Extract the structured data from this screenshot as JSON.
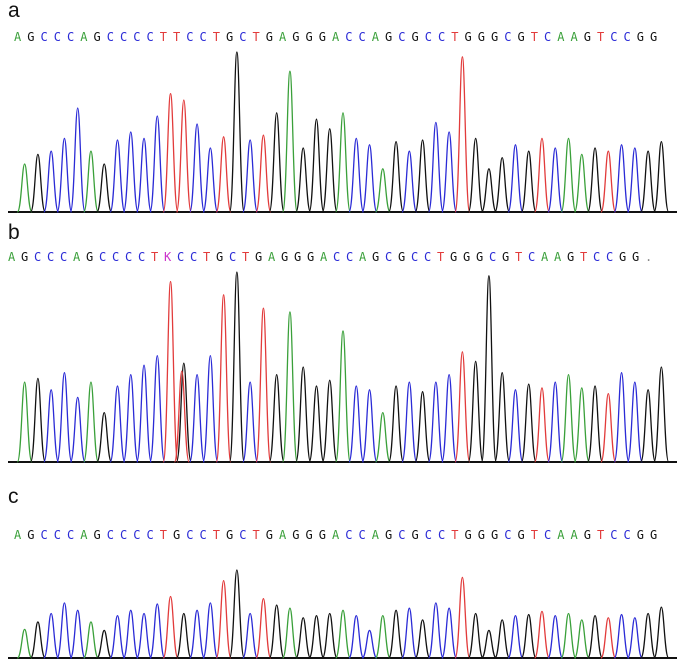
{
  "colors": {
    "A": "#3aa03a",
    "C": "#2b2bd6",
    "G": "#111111",
    "T": "#e23b3b",
    "K": "#cc33cc",
    "axis": "#111111"
  },
  "panels": [
    {
      "id": "a",
      "label": "a",
      "sequence": [
        "A",
        "G",
        "C",
        "C",
        "C",
        "A",
        "G",
        "C",
        "C",
        "C",
        "C",
        "T",
        "T",
        "C",
        "C",
        "T",
        "G",
        "C",
        "T",
        "G",
        "A",
        "G",
        "G",
        "G",
        "A",
        "C",
        "C",
        "A",
        "G",
        "C",
        "G",
        "C",
        "C",
        "T",
        "G",
        "G",
        "G",
        "C",
        "G",
        "T",
        "C",
        "A",
        "A",
        "G",
        "T",
        "C",
        "C",
        "G",
        "G"
      ],
      "peak_heights": [
        0.3,
        0.36,
        0.38,
        0.46,
        0.65,
        0.38,
        0.3,
        0.45,
        0.5,
        0.46,
        0.6,
        0.74,
        0.7,
        0.55,
        0.4,
        0.47,
        1.0,
        0.45,
        0.48,
        0.62,
        0.88,
        0.4,
        0.58,
        0.52,
        0.62,
        0.46,
        0.42,
        0.27,
        0.44,
        0.38,
        0.45,
        0.56,
        0.5,
        0.97,
        0.46,
        0.27,
        0.34,
        0.42,
        0.38,
        0.46,
        0.4,
        0.46,
        0.36,
        0.4,
        0.38,
        0.42,
        0.4,
        0.38,
        0.44
      ]
    },
    {
      "id": "b",
      "label": "b",
      "sequence": [
        "A",
        "G",
        "C",
        "C",
        "C",
        "A",
        "G",
        "C",
        "C",
        "C",
        "C",
        "T",
        "K",
        "C",
        "C",
        "T",
        "G",
        "C",
        "T",
        "G",
        "A",
        "G",
        "G",
        "G",
        "A",
        "C",
        "C",
        "A",
        "G",
        "C",
        "G",
        "C",
        "C",
        "T",
        "G",
        "G",
        "G",
        "C",
        "G",
        "T",
        "C",
        "A",
        "A",
        "G",
        "T",
        "C",
        "C",
        "G",
        "G",
        "."
      ],
      "peak_heights": [
        0.42,
        0.44,
        0.38,
        0.47,
        0.34,
        0.42,
        0.26,
        0.4,
        0.46,
        0.51,
        0.56,
        0.95,
        0.52,
        0.46,
        0.56,
        0.88,
        1.0,
        0.42,
        0.81,
        0.46,
        0.79,
        0.5,
        0.4,
        0.43,
        0.69,
        0.4,
        0.38,
        0.26,
        0.4,
        0.42,
        0.37,
        0.42,
        0.46,
        0.58,
        0.53,
        0.98,
        0.47,
        0.38,
        0.41,
        0.39,
        0.42,
        0.46,
        0.39,
        0.4,
        0.36,
        0.47,
        0.42,
        0.38,
        0.5
      ]
    },
    {
      "id": "c",
      "label": "c",
      "sequence": [
        "A",
        "G",
        "C",
        "C",
        "C",
        "A",
        "G",
        "C",
        "C",
        "C",
        "C",
        "T",
        "G",
        "C",
        "C",
        "T",
        "G",
        "C",
        "T",
        "G",
        "A",
        "G",
        "G",
        "G",
        "A",
        "C",
        "C",
        "A",
        "G",
        "C",
        "G",
        "C",
        "C",
        "T",
        "G",
        "G",
        "G",
        "C",
        "G",
        "T",
        "C",
        "A",
        "A",
        "G",
        "T",
        "C",
        "C",
        "G",
        "G"
      ],
      "peak_heights": [
        0.27,
        0.34,
        0.42,
        0.52,
        0.45,
        0.34,
        0.26,
        0.4,
        0.45,
        0.42,
        0.51,
        0.58,
        0.42,
        0.45,
        0.52,
        0.73,
        0.83,
        0.42,
        0.56,
        0.5,
        0.47,
        0.38,
        0.4,
        0.42,
        0.45,
        0.4,
        0.26,
        0.4,
        0.45,
        0.47,
        0.36,
        0.52,
        0.47,
        0.76,
        0.42,
        0.26,
        0.36,
        0.4,
        0.41,
        0.44,
        0.4,
        0.42,
        0.36,
        0.4,
        0.38,
        0.41,
        0.38,
        0.42,
        0.48
      ]
    }
  ]
}
